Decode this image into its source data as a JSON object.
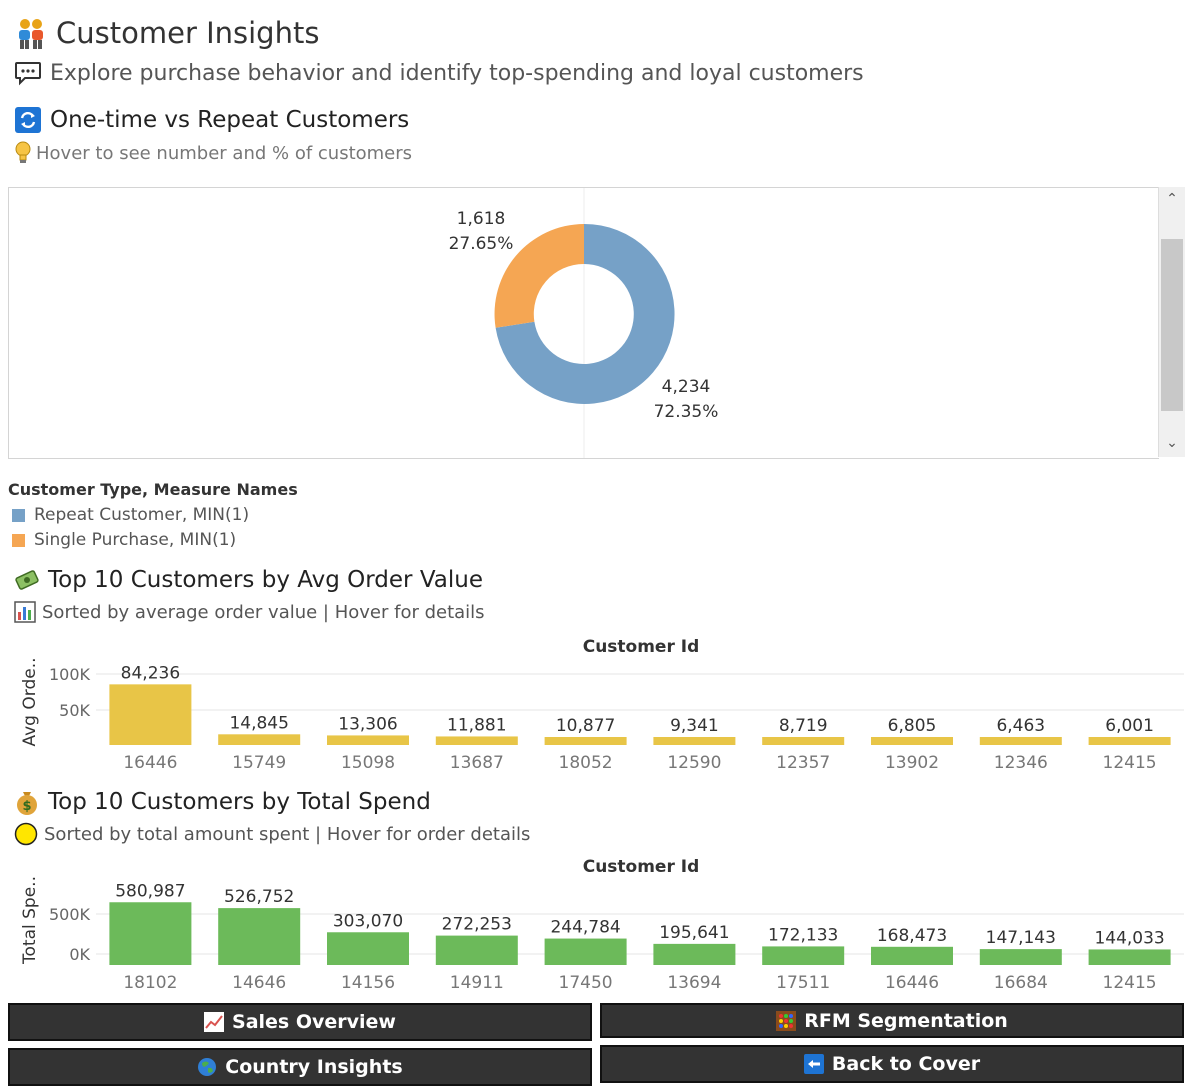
{
  "header": {
    "title": "Customer Insights",
    "subtitle": "Explore purchase behavior and identify top-spending and loyal customers"
  },
  "donut_section": {
    "title": "One-time vs Repeat Customers",
    "hint": "Hover to see number and % of customers",
    "legend_title": "Customer Type, Measure Names",
    "legend": [
      {
        "label": "Repeat Customer, MIN(1)",
        "color": "#76a1c7"
      },
      {
        "label": "Single Purchase, MIN(1)",
        "color": "#f5a653"
      }
    ],
    "repeat_count": "4,234",
    "repeat_pct": "72.35%",
    "single_count": "1,618",
    "single_pct": "27.65%"
  },
  "avg_section": {
    "title": "Top 10 Customers by Avg Order Value",
    "hint": "Sorted by average order value | Hover for details",
    "x_header": "Customer Id",
    "y_label": "Avg Orde..",
    "color": "#e8c547"
  },
  "spend_section": {
    "title": "Top 10 Customers by Total Spend",
    "hint": "Sorted by total amount spent | Hover for order details",
    "x_header": "Customer Id",
    "y_label": "Total Spe..",
    "color": "#6cba5a"
  },
  "nav": {
    "sales_overview": "Sales Overview",
    "rfm_segmentation": "RFM Segmentation",
    "country_insights": "Country Insights",
    "back_to_cover": "Back to Cover"
  },
  "chart_data": [
    {
      "type": "pie",
      "categories": [
        "Repeat Customer",
        "Single Purchase"
      ],
      "values": [
        4234,
        1618
      ],
      "labels": [
        "4,234\n72.35%",
        "1,618\n27.65%"
      ]
    },
    {
      "type": "bar",
      "title": "Top 10 Customers by Avg Order Value",
      "xlabel": "Customer Id",
      "ylabel": "Avg Orde..",
      "categories": [
        "16446",
        "15749",
        "15098",
        "13687",
        "18052",
        "12590",
        "12357",
        "13902",
        "12346",
        "12415"
      ],
      "values": [
        84236,
        14845,
        13306,
        11881,
        10877,
        9341,
        8719,
        6805,
        6463,
        6001
      ],
      "data_labels": [
        "84,236",
        "14,845",
        "13,306",
        "11,881",
        "10,877",
        "9,341",
        "8,719",
        "6,805",
        "6,463",
        "6,001"
      ],
      "yticks": [
        "100K",
        "50K"
      ],
      "ylim": [
        0,
        100000
      ]
    },
    {
      "type": "bar",
      "title": "Top 10 Customers by Total Spend",
      "xlabel": "Customer Id",
      "ylabel": "Total Spe..",
      "categories": [
        "18102",
        "14646",
        "14156",
        "14911",
        "17450",
        "13694",
        "17511",
        "16446",
        "16684",
        "12415"
      ],
      "values": [
        580987,
        526752,
        303070,
        272253,
        244784,
        195641,
        172133,
        168473,
        147143,
        144033
      ],
      "data_labels": [
        "580,987",
        "526,752",
        "303,070",
        "272,253",
        "244,784",
        "195,641",
        "172,133",
        "168,473",
        "147,143",
        "144,033"
      ],
      "yticks": [
        "500K",
        "0K"
      ],
      "ylim": [
        0,
        500000
      ]
    }
  ]
}
